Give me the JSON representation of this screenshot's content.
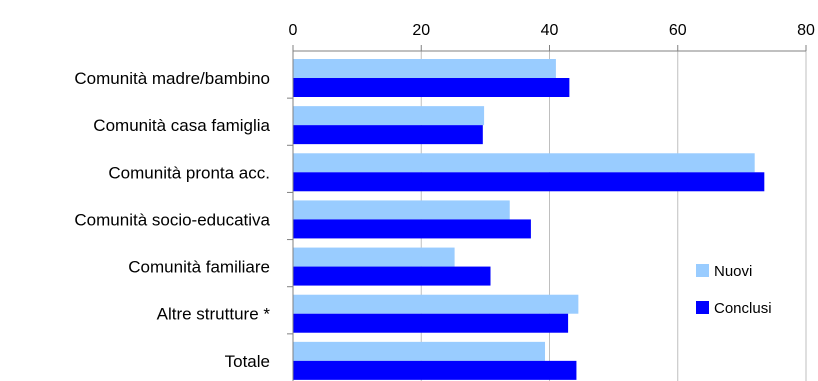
{
  "chart_data": {
    "type": "bar",
    "orientation": "horizontal",
    "title": "",
    "xlabel": "",
    "ylabel": "",
    "xlim": [
      0,
      80
    ],
    "x_ticks": [
      "0",
      "20",
      "40",
      "60",
      "80"
    ],
    "x_axis_position": "top",
    "grid": true,
    "legend_position": "bottom-right",
    "categories": [
      "Comunità madre/bambino",
      "Comunità casa famiglia",
      "Comunità pronta acc.",
      "Comunità socio-educativa",
      "Comunità familiare",
      "Altre strutture *",
      "Totale"
    ],
    "series": [
      {
        "name": "Nuovi",
        "color": "#99CCFF",
        "values": [
          41,
          29.8,
          72,
          33.8,
          25.2,
          44.5,
          39.3
        ]
      },
      {
        "name": "Conclusi",
        "color": "#0000FF",
        "values": [
          43.1,
          29.6,
          73.5,
          37.1,
          30.8,
          42.9,
          44.2
        ]
      }
    ]
  }
}
